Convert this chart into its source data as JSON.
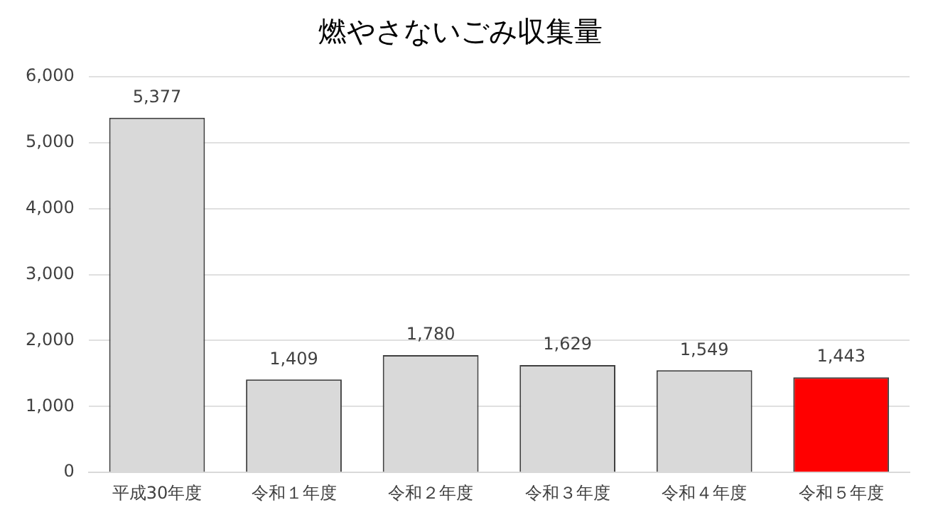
{
  "chart_data": {
    "type": "bar",
    "title": "燃やさないごみ収集量",
    "categories": [
      "平成30年度",
      "令和１年度",
      "令和２年度",
      "令和３年度",
      "令和４年度",
      "令和５年度"
    ],
    "values": [
      5377,
      1409,
      1780,
      1629,
      1549,
      1443
    ],
    "colors": [
      "#d9d9d9",
      "#d9d9d9",
      "#d9d9d9",
      "#d9d9d9",
      "#d9d9d9",
      "#ff0000"
    ],
    "ylim": [
      0,
      6000
    ],
    "yticks": [
      {
        "value": 0,
        "label": "0"
      },
      {
        "value": 1000,
        "label": "1,000"
      },
      {
        "value": 2000,
        "label": "2,000"
      },
      {
        "value": 3000,
        "label": "3,000"
      },
      {
        "value": 4000,
        "label": "4,000"
      },
      {
        "value": 5000,
        "label": "5,000"
      },
      {
        "value": 6000,
        "label": "6,000"
      }
    ],
    "value_labels": [
      "5,377",
      "1,409",
      "1,780",
      "1,629",
      "1,549",
      "1,443"
    ],
    "grid": "y",
    "legend": false
  }
}
